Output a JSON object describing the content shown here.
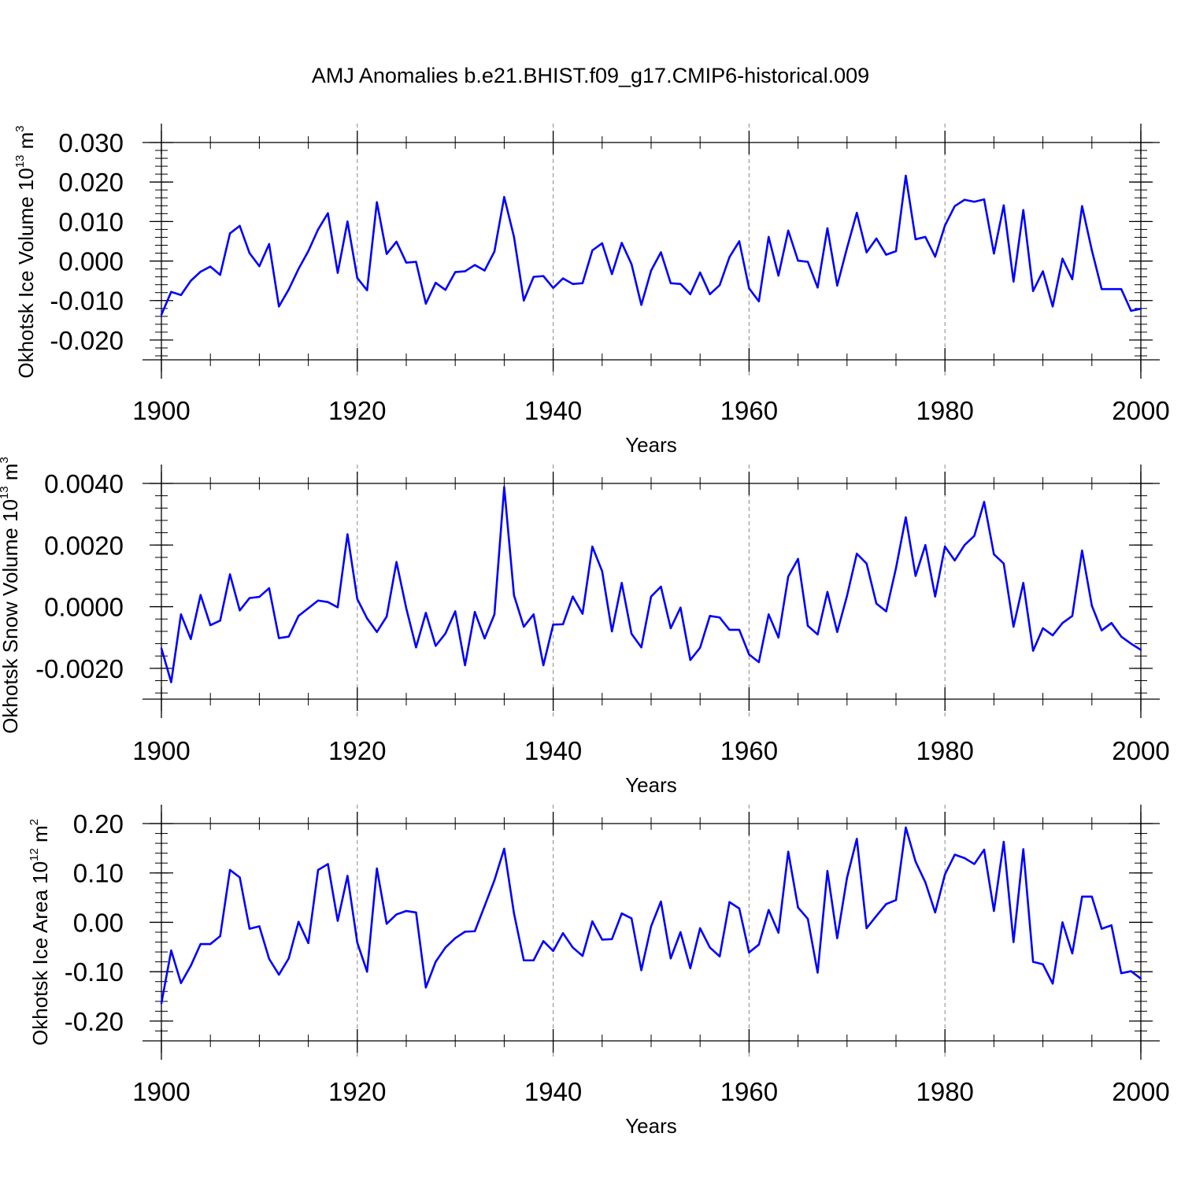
{
  "title": "AMJ Anomalies b.e21.BHIST.f09_g17.CMIP6-historical.009",
  "style": {
    "line_color": "#0000ff",
    "axis_color": "#000000",
    "grid_color": "#888888"
  },
  "chart_data": [
    {
      "type": "line",
      "ylabel": "Okhotsk Ice Volume",
      "yunit": {
        "base": "10",
        "exp": "13",
        "unit": "m",
        "unit_exp": "3"
      },
      "xlabel": "Years",
      "xlim": [
        1900,
        2000
      ],
      "ylim": [
        -0.025,
        0.03
      ],
      "xticks": [
        "1900",
        "1920",
        "1940",
        "1960",
        "1980",
        "2000"
      ],
      "yticks": [
        {
          "value": -0.02,
          "label": "-0.020"
        },
        {
          "value": -0.01,
          "label": "-0.010"
        },
        {
          "value": 0.0,
          "label": "0.000"
        },
        {
          "value": 0.01,
          "label": "0.010"
        },
        {
          "value": 0.02,
          "label": "0.020"
        },
        {
          "value": 0.03,
          "label": "0.030"
        }
      ],
      "yminor": 0.002,
      "grid": "dashed vertical at 1920, 1940, 1960, 1980",
      "series": [
        {
          "name": "Okhotsk Ice Volume",
          "x_start": 1900,
          "values": [
            -0.0136,
            -0.0078,
            -0.0086,
            -0.005,
            -0.0027,
            -0.0014,
            -0.0035,
            0.007,
            0.0089,
            0.002,
            -0.0013,
            0.0043,
            -0.0115,
            -0.0072,
            -0.002,
            0.0025,
            0.008,
            0.0121,
            -0.003,
            0.01,
            -0.0043,
            -0.0074,
            0.0149,
            0.0018,
            0.0049,
            -0.0004,
            -0.0002,
            -0.0108,
            -0.0055,
            -0.0073,
            -0.0028,
            -0.0026,
            -0.001,
            -0.0024,
            0.0024,
            0.0162,
            0.0061,
            -0.01,
            -0.004,
            -0.0038,
            -0.0068,
            -0.0044,
            -0.0058,
            -0.0056,
            0.0027,
            0.0045,
            -0.0033,
            0.0046,
            -0.0008,
            -0.0111,
            -0.0024,
            0.0022,
            -0.0056,
            -0.0058,
            -0.0084,
            -0.0029,
            -0.0084,
            -0.0061,
            0.001,
            0.005,
            -0.0069,
            -0.0102,
            0.0061,
            -0.0037,
            0.0077,
            0.0001,
            -0.0002,
            -0.0067,
            0.0083,
            -0.0062,
            0.0033,
            0.0122,
            0.0022,
            0.0057,
            0.0016,
            0.0025,
            0.0216,
            0.0055,
            0.0061,
            0.0011,
            0.009,
            0.0139,
            0.0155,
            0.015,
            0.0156,
            0.0019,
            0.0141,
            -0.0052,
            0.0129,
            -0.0076,
            -0.0026,
            -0.0115,
            0.0006,
            -0.0046,
            0.0139,
            0.0027,
            -0.0071,
            -0.0071,
            -0.0071,
            -0.0126,
            -0.0121
          ]
        }
      ]
    },
    {
      "type": "line",
      "ylabel": "Okhotsk Snow Volume",
      "yunit": {
        "base": "10",
        "exp": "13",
        "unit": "m",
        "unit_exp": "3"
      },
      "xlabel": "Years",
      "xlim": [
        1900,
        2000
      ],
      "ylim": [
        -0.003,
        0.004
      ],
      "xticks": [
        "1900",
        "1920",
        "1940",
        "1960",
        "1980",
        "2000"
      ],
      "yticks": [
        {
          "value": -0.002,
          "label": "-0.0020"
        },
        {
          "value": 0.0,
          "label": "0.0000"
        },
        {
          "value": 0.002,
          "label": "0.0020"
        },
        {
          "value": 0.004,
          "label": "0.0040"
        }
      ],
      "yminor": 0.0004,
      "grid": "dashed vertical at 1920, 1940, 1960, 1980",
      "series": [
        {
          "name": "Okhotsk Snow Volume",
          "x_start": 1900,
          "values": [
            -0.00135,
            -0.00245,
            -0.00025,
            -0.00105,
            0.00038,
            -0.0006,
            -0.00045,
            0.00105,
            -0.00012,
            0.00028,
            0.00032,
            0.0006,
            -0.00102,
            -0.00097,
            -0.0003,
            -5e-05,
            0.0002,
            0.00015,
            -2e-05,
            0.00235,
            0.00025,
            -0.00038,
            -0.00082,
            -0.00032,
            0.00145,
            -5e-05,
            -0.00132,
            -0.0002,
            -0.00127,
            -0.00087,
            -0.00015,
            -0.0019,
            -0.00017,
            -0.00103,
            -0.00025,
            0.00388,
            0.00037,
            -0.00065,
            -0.00025,
            -0.0019,
            -0.00058,
            -0.00057,
            0.00033,
            -0.00023,
            0.00195,
            0.00115,
            -0.0008,
            0.00077,
            -0.00088,
            -0.00132,
            0.00033,
            0.00065,
            -0.0007,
            -3e-05,
            -0.00173,
            -0.00133,
            -0.0003,
            -0.00035,
            -0.00075,
            -0.00075,
            -0.00155,
            -0.0018,
            -0.00025,
            -0.001,
            0.00098,
            0.00155,
            -0.00062,
            -0.0009,
            0.00048,
            -0.00082,
            0.00035,
            0.00172,
            0.0014,
            0.0001,
            -0.00015,
            0.00125,
            0.0029,
            0.001,
            0.002,
            0.00033,
            0.00195,
            0.0015,
            0.002,
            0.0023,
            0.0034,
            0.0017,
            0.0014,
            -0.00065,
            0.00077,
            -0.00143,
            -0.0007,
            -0.00093,
            -0.00053,
            -0.0003,
            0.00182,
            3e-05,
            -0.00077,
            -0.00053,
            -0.00097,
            -0.0012,
            -0.0014
          ]
        }
      ]
    },
    {
      "type": "line",
      "ylabel": "Okhotsk Ice Area",
      "yunit": {
        "base": "10",
        "exp": "12",
        "unit": "m",
        "unit_exp": "2"
      },
      "xlabel": "Years",
      "xlim": [
        1900,
        2000
      ],
      "ylim": [
        -0.24,
        0.2
      ],
      "xticks": [
        "1900",
        "1920",
        "1940",
        "1960",
        "1980",
        "2000"
      ],
      "yticks": [
        {
          "value": -0.2,
          "label": "-0.20"
        },
        {
          "value": -0.1,
          "label": "-0.10"
        },
        {
          "value": 0.0,
          "label": "0.00"
        },
        {
          "value": 0.1,
          "label": "0.10"
        },
        {
          "value": 0.2,
          "label": "0.20"
        }
      ],
      "yminor": 0.02,
      "grid": "dashed vertical at 1920, 1940, 1960, 1980",
      "series": [
        {
          "name": "Okhotsk Ice Area",
          "x_start": 1900,
          "values": [
            -0.164,
            -0.057,
            -0.123,
            -0.088,
            -0.044,
            -0.044,
            -0.028,
            0.106,
            0.091,
            -0.013,
            -0.008,
            -0.074,
            -0.106,
            -0.073,
            0.001,
            -0.042,
            0.106,
            0.118,
            0.003,
            0.094,
            -0.041,
            -0.1,
            0.109,
            -0.003,
            0.016,
            0.023,
            0.02,
            -0.132,
            -0.08,
            -0.051,
            -0.032,
            -0.019,
            -0.018,
            0.033,
            0.085,
            0.149,
            0.018,
            -0.077,
            -0.077,
            -0.038,
            -0.058,
            -0.022,
            -0.051,
            -0.068,
            0.002,
            -0.035,
            -0.034,
            0.018,
            0.008,
            -0.097,
            -0.008,
            0.042,
            -0.073,
            -0.02,
            -0.093,
            -0.012,
            -0.051,
            -0.069,
            0.041,
            0.028,
            -0.061,
            -0.045,
            0.025,
            -0.021,
            0.143,
            0.03,
            0.007,
            -0.102,
            0.104,
            -0.032,
            0.09,
            0.169,
            -0.012,
            0.013,
            0.037,
            0.045,
            0.192,
            0.123,
            0.081,
            0.02,
            0.097,
            0.137,
            0.13,
            0.118,
            0.147,
            0.023,
            0.163,
            -0.04,
            0.148,
            -0.08,
            -0.085,
            -0.124,
            0.0,
            -0.063,
            0.052,
            0.052,
            -0.013,
            -0.006,
            -0.103,
            -0.099,
            -0.114
          ]
        }
      ]
    }
  ]
}
